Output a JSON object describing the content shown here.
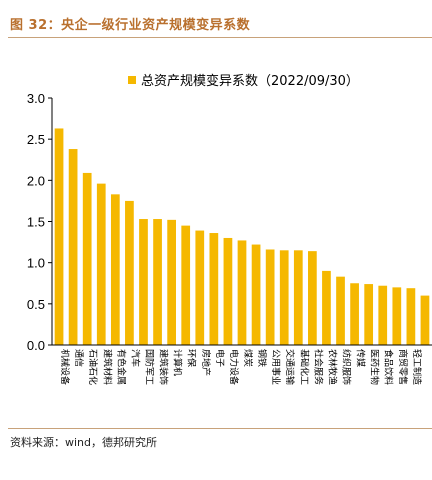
{
  "figure": {
    "title": "图 32：央企一级行业资产规模变异系数",
    "source": "资料来源：wind，德邦研究所"
  },
  "colors": {
    "bar": "#F5B800",
    "title": "#b9702e",
    "rule": "#c8a27a",
    "axis": "#000000"
  },
  "chart_data": {
    "type": "bar",
    "title": "",
    "xlabel": "",
    "ylabel": "",
    "ylim": [
      0,
      3.0
    ],
    "yticks": [
      "0.0",
      "0.5",
      "1.0",
      "1.5",
      "2.0",
      "2.5",
      "3.0"
    ],
    "grid": false,
    "legend_position": "top",
    "series": [
      {
        "name": "总资产规模变异系数（2022/09/30）",
        "values": [
          2.63,
          2.38,
          2.09,
          1.96,
          1.83,
          1.75,
          1.53,
          1.53,
          1.52,
          1.45,
          1.39,
          1.36,
          1.3,
          1.27,
          1.22,
          1.16,
          1.15,
          1.15,
          1.14,
          0.9,
          0.83,
          0.75,
          0.74,
          0.72,
          0.7,
          0.69,
          0.6
        ]
      }
    ],
    "categories": [
      "机械设备",
      "通信",
      "石油石化",
      "建筑材料",
      "有色金属",
      "汽车",
      "国防军工",
      "建筑装饰",
      "计算机",
      "环保",
      "房地产",
      "电子",
      "电力设备",
      "煤炭",
      "钢铁",
      "公用事业",
      "交通运输",
      "基础化工",
      "社会服务",
      "农林牧渔",
      "纺织服饰",
      "传媒",
      "医药生物",
      "食品饮料",
      "商贸零售",
      "轻工制造",
      ""
    ]
  }
}
